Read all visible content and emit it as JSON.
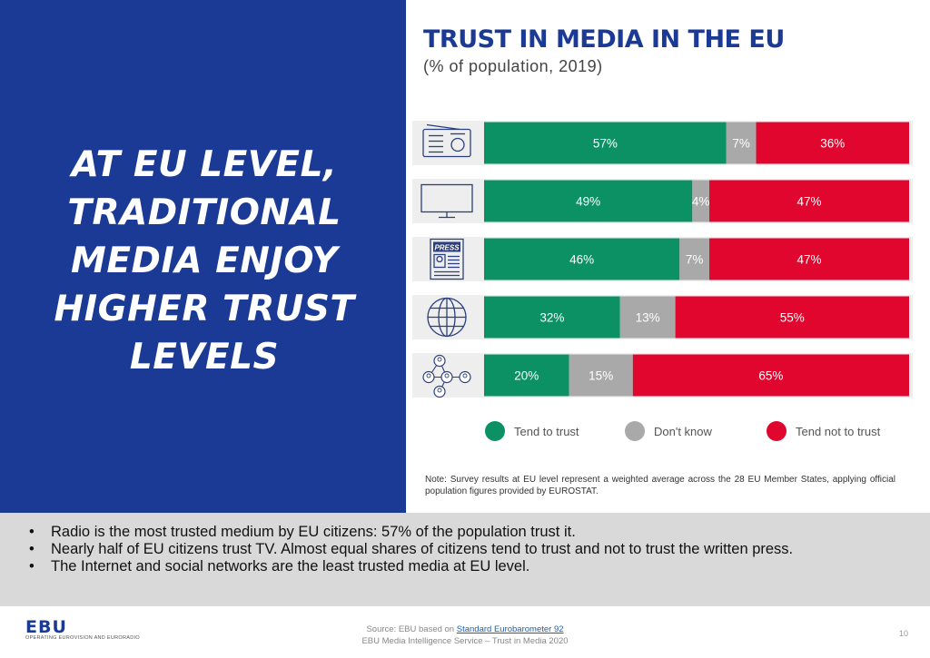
{
  "left_panel": {
    "headline_lines": [
      "AT EU LEVEL,",
      "TRADITIONAL",
      "MEDIA ENJOY",
      "HIGHER TRUST",
      "LEVELS"
    ]
  },
  "chart_data": {
    "type": "bar",
    "stacked": true,
    "orientation": "horizontal",
    "title": "TRUST IN MEDIA IN THE EU",
    "subtitle": "(% of population, 2019)",
    "categories": [
      "radio-icon",
      "tv-icon",
      "press-icon",
      "internet-icon",
      "social-network-icon"
    ],
    "series": [
      {
        "name": "Tend to trust",
        "color": "#0c9164",
        "values": [
          57,
          49,
          46,
          32,
          20
        ]
      },
      {
        "name": "Don't know",
        "color": "#a9a9a9",
        "values": [
          7,
          4,
          7,
          13,
          15
        ]
      },
      {
        "name": "Tend not to trust",
        "color": "#e0062e",
        "values": [
          36,
          47,
          47,
          55,
          65
        ]
      }
    ],
    "data_labels": [
      [
        "57%",
        "7%",
        "36%"
      ],
      [
        "49%",
        "4%",
        "47%"
      ],
      [
        "46%",
        "7%",
        "47%"
      ],
      [
        "32%",
        "13%",
        "55%"
      ],
      [
        "20%",
        "15%",
        "65%"
      ]
    ],
    "xlim": [
      0,
      100
    ],
    "legend_position": "bottom",
    "press_icon_text": "PRESS"
  },
  "note": "Note: Survey results at EU level represent a weighted average across the 28 EU Member States, applying official population figures provided by EUROSTAT.",
  "bullets": [
    "Radio is the most trusted medium by EU citizens: 57% of the population trust it.",
    "Nearly half of EU citizens trust TV. Almost equal shares of citizens tend to trust and not to trust the written press.",
    "The Internet and social networks are the least trusted media at EU level."
  ],
  "bullet_char": "•",
  "footer": {
    "logo": "EBU",
    "tagline": "OPERATING EUROVISION AND EURORADIO",
    "source_prefix": "Source: EBU based on ",
    "source_link": "Standard Eurobarometer 92",
    "service": "EBU Media Intelligence Service – Trust in Media 2020",
    "page_number": "10"
  },
  "colors": {
    "brand_blue": "#1a3a95",
    "trust_green": "#0c9164",
    "dont_know_grey": "#a9a9a9",
    "no_trust_red": "#e0062e",
    "bullet_bg": "#d9d9d9"
  }
}
